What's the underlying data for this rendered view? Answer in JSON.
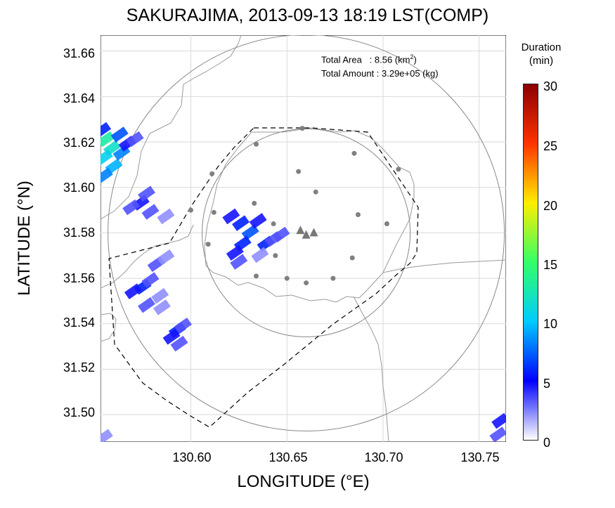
{
  "title": "SAKURAJIMA, 2013-09-13 18:19 LST(COMP)",
  "xlabel": "LONGITUDE (°E)",
  "ylabel": "LATITUDE (°N)",
  "x_ticks": [
    "130.60",
    "130.65",
    "130.70",
    "130.75"
  ],
  "y_ticks": [
    "31.66",
    "31.64",
    "31.62",
    "31.60",
    "31.58",
    "31.56",
    "31.54",
    "31.52",
    "31.50"
  ],
  "annotation": {
    "area_label": "Total Area   : 8.56 (km",
    "area_sup": "2",
    "area_end": ")",
    "amount_label": "Total Amount : 3.29e+05 (kg)"
  },
  "colorbar": {
    "title_line1": "Duration",
    "title_line2": "(min)",
    "ticks": [
      "30",
      "25",
      "20",
      "15",
      "10",
      "5",
      "0"
    ],
    "range": [
      0,
      30
    ]
  },
  "chart_data": {
    "type": "heatmap",
    "title": "SAKURAJIMA, 2013-09-13 18:19 LST(COMP)",
    "xlabel": "LONGITUDE (°E)",
    "ylabel": "LATITUDE (°N)",
    "xlim": [
      130.553,
      130.764
    ],
    "ylim": [
      31.488,
      31.667
    ],
    "grid": true,
    "value_label": "Duration (min)",
    "colorbar_range": [
      0,
      30
    ],
    "crater": {
      "lon": 130.66,
      "lat": 31.58
    },
    "vents": [
      {
        "lon": 130.657,
        "lat": 31.581
      },
      {
        "lon": 130.66,
        "lat": 31.579
      },
      {
        "lon": 130.664,
        "lat": 31.58
      }
    ],
    "stations": [
      {
        "lon": 130.658,
        "lat": 31.626
      },
      {
        "lon": 130.634,
        "lat": 31.619
      },
      {
        "lon": 130.685,
        "lat": 31.615
      },
      {
        "lon": 130.611,
        "lat": 31.606
      },
      {
        "lon": 130.656,
        "lat": 31.607
      },
      {
        "lon": 130.708,
        "lat": 31.608
      },
      {
        "lon": 130.665,
        "lat": 31.598
      },
      {
        "lon": 130.633,
        "lat": 31.593
      },
      {
        "lon": 130.6,
        "lat": 31.59
      },
      {
        "lon": 130.612,
        "lat": 31.589
      },
      {
        "lon": 130.687,
        "lat": 31.588
      },
      {
        "lon": 130.643,
        "lat": 31.584
      },
      {
        "lon": 130.702,
        "lat": 31.584
      },
      {
        "lon": 130.609,
        "lat": 31.575
      },
      {
        "lon": 130.644,
        "lat": 31.57
      },
      {
        "lon": 130.684,
        "lat": 31.569
      },
      {
        "lon": 130.634,
        "lat": 31.561
      },
      {
        "lon": 130.65,
        "lat": 31.56
      },
      {
        "lon": 130.674,
        "lat": 31.56
      },
      {
        "lon": 130.66,
        "lat": 31.558
      }
    ],
    "cells": [
      {
        "lon": 130.557,
        "lat": 31.62,
        "v": 10
      },
      {
        "lon": 130.56,
        "lat": 31.616,
        "v": 9
      },
      {
        "lon": 130.556,
        "lat": 31.612,
        "v": 8
      },
      {
        "lon": 130.561,
        "lat": 31.608,
        "v": 7
      },
      {
        "lon": 130.556,
        "lat": 31.604,
        "v": 6
      },
      {
        "lon": 130.564,
        "lat": 31.622,
        "v": 5
      },
      {
        "lon": 130.565,
        "lat": 31.614,
        "v": 6
      },
      {
        "lon": 130.555,
        "lat": 31.624,
        "v": 4
      },
      {
        "lon": 130.568,
        "lat": 31.618,
        "v": 3
      },
      {
        "lon": 130.572,
        "lat": 31.62,
        "v": 2
      },
      {
        "lon": 130.575,
        "lat": 31.592,
        "v": 3
      },
      {
        "lon": 130.57,
        "lat": 31.59,
        "v": 2
      },
      {
        "lon": 130.578,
        "lat": 31.596,
        "v": 2
      },
      {
        "lon": 130.58,
        "lat": 31.588,
        "v": 2
      },
      {
        "lon": 130.588,
        "lat": 31.586,
        "v": 1
      },
      {
        "lon": 130.576,
        "lat": 31.555,
        "v": 4
      },
      {
        "lon": 130.571,
        "lat": 31.553,
        "v": 3
      },
      {
        "lon": 130.58,
        "lat": 31.558,
        "v": 2
      },
      {
        "lon": 130.583,
        "lat": 31.565,
        "v": 2
      },
      {
        "lon": 130.588,
        "lat": 31.568,
        "v": 1
      },
      {
        "lon": 130.578,
        "lat": 31.547,
        "v": 2
      },
      {
        "lon": 130.585,
        "lat": 31.551,
        "v": 1
      },
      {
        "lon": 130.586,
        "lat": 31.546,
        "v": 1
      },
      {
        "lon": 130.594,
        "lat": 31.536,
        "v": 4
      },
      {
        "lon": 130.591,
        "lat": 31.533,
        "v": 3
      },
      {
        "lon": 130.597,
        "lat": 31.538,
        "v": 2
      },
      {
        "lon": 130.595,
        "lat": 31.53,
        "v": 2
      },
      {
        "lon": 130.627,
        "lat": 31.583,
        "v": 4
      },
      {
        "lon": 130.632,
        "lat": 31.579,
        "v": 5
      },
      {
        "lon": 130.628,
        "lat": 31.574,
        "v": 4
      },
      {
        "lon": 130.624,
        "lat": 31.57,
        "v": 3
      },
      {
        "lon": 130.622,
        "lat": 31.586,
        "v": 3
      },
      {
        "lon": 130.636,
        "lat": 31.584,
        "v": 3
      },
      {
        "lon": 130.626,
        "lat": 31.566,
        "v": 2
      },
      {
        "lon": 130.64,
        "lat": 31.574,
        "v": 4
      },
      {
        "lon": 130.644,
        "lat": 31.576,
        "v": 2
      },
      {
        "lon": 130.637,
        "lat": 31.569,
        "v": 1
      },
      {
        "lon": 130.648,
        "lat": 31.578,
        "v": 2
      },
      {
        "lon": 130.762,
        "lat": 31.496,
        "v": 3
      },
      {
        "lon": 130.761,
        "lat": 31.49,
        "v": 2
      },
      {
        "lon": 130.556,
        "lat": 31.489,
        "v": 1
      }
    ]
  },
  "colors": {
    "grid": "#d9d9d9",
    "coast": "#9a9a9a",
    "range_ring": "#888888",
    "station": "#808080",
    "boundary": "#000000"
  }
}
